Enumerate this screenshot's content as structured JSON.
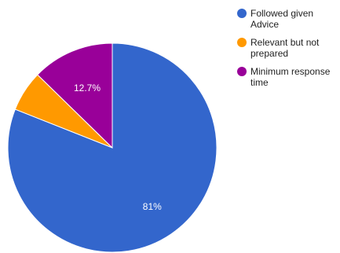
{
  "chart_data": {
    "type": "pie",
    "title": "",
    "legend_position": "right",
    "slices": [
      {
        "label": "Followed given Advice",
        "value": 81,
        "display": "81%",
        "color": "#3366cc"
      },
      {
        "label": "Relevant but not prepared",
        "value": 6.3,
        "display": "",
        "color": "#ff9900"
      },
      {
        "label": "Minimum response time",
        "value": 12.7,
        "display": "12.7%",
        "color": "#990099"
      }
    ]
  }
}
